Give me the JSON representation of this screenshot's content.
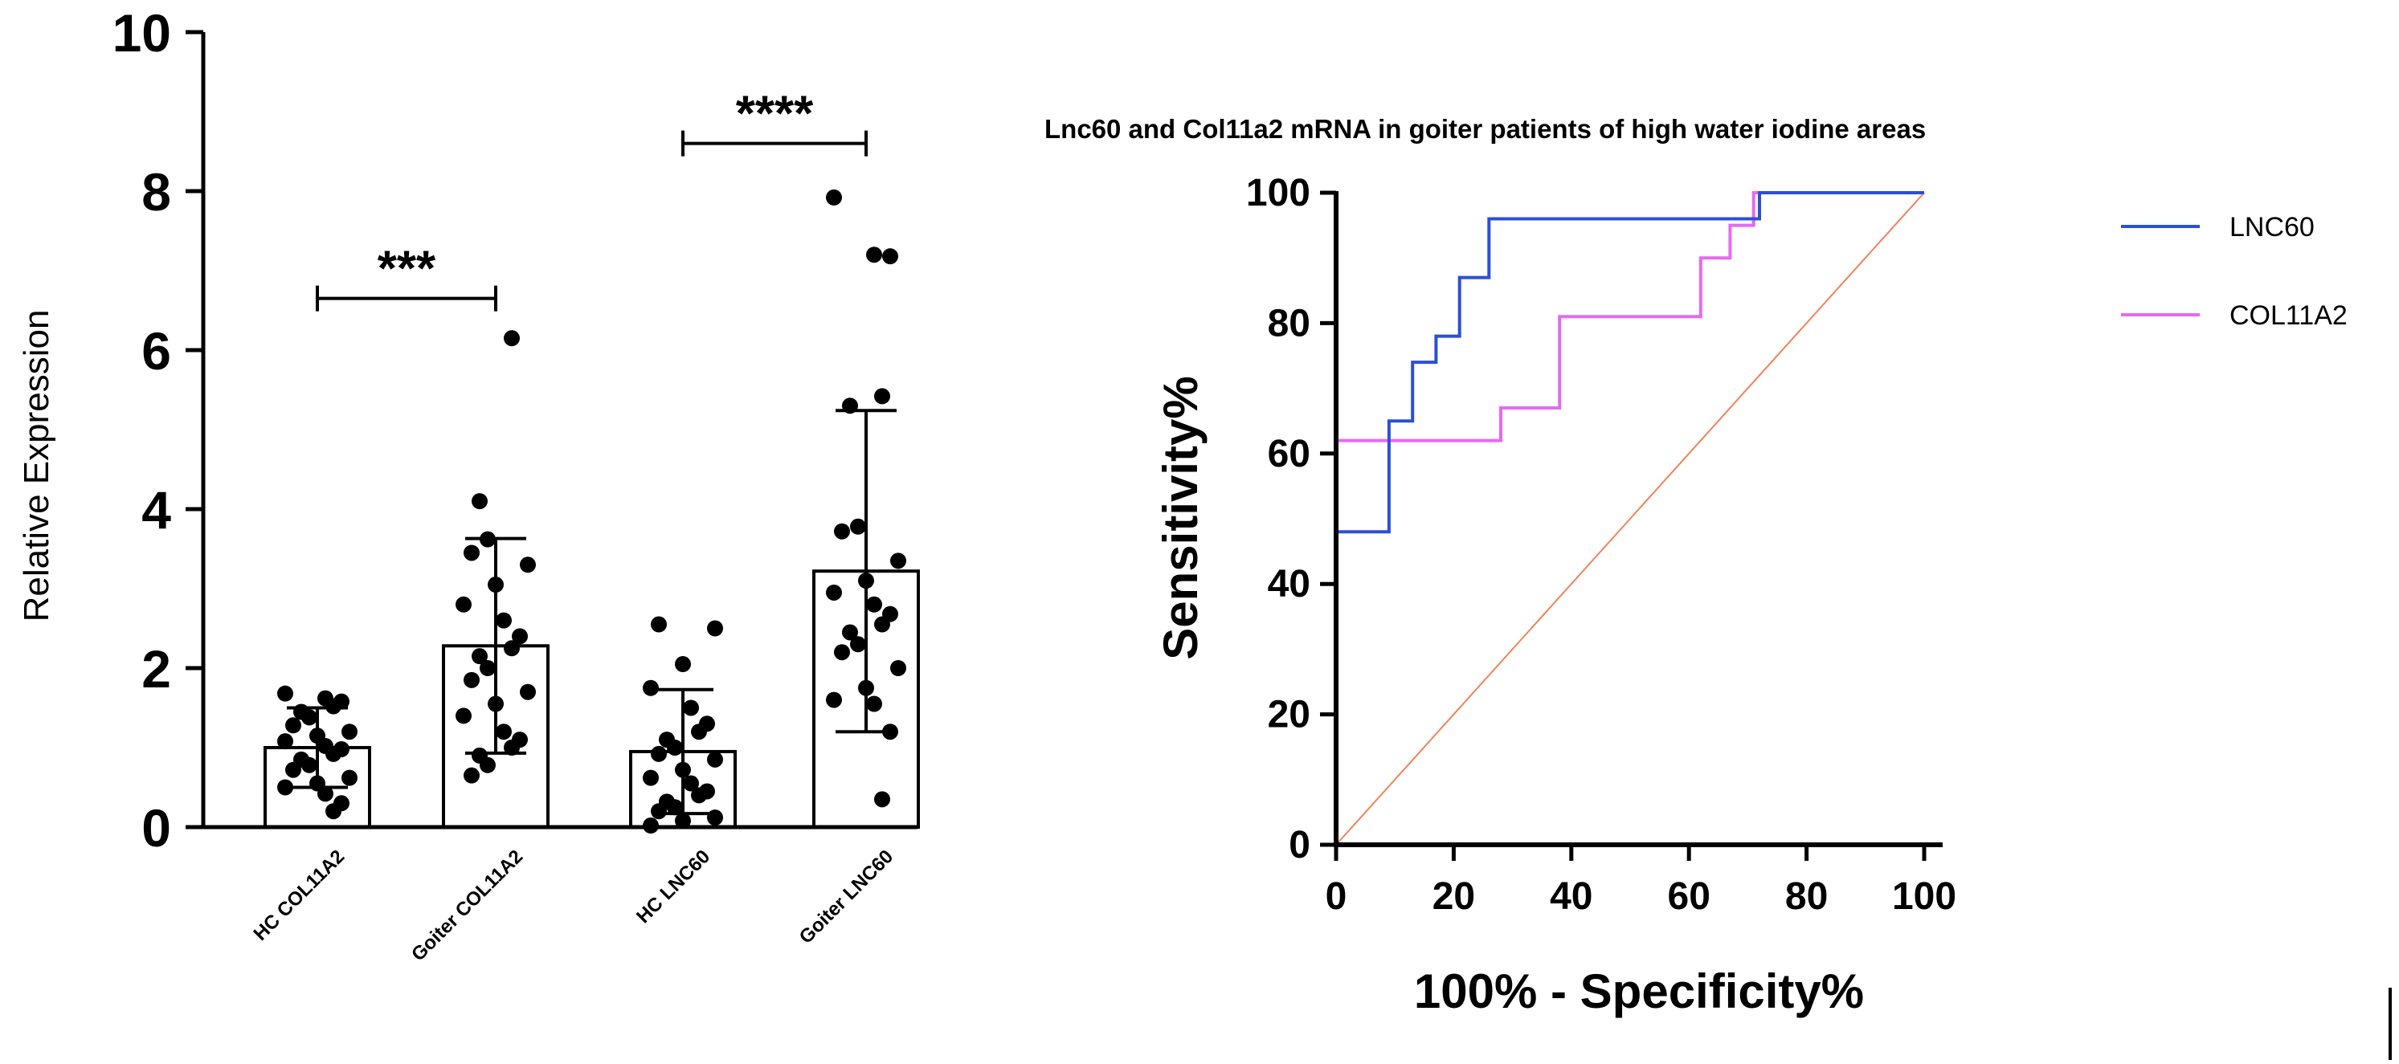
{
  "chart_data": [
    {
      "type": "bar",
      "title": "",
      "xlabel": "",
      "ylabel": "Relative Expression",
      "ylim": [
        0,
        10
      ],
      "yticks": [
        0,
        2,
        4,
        6,
        8,
        10
      ],
      "categories": [
        "HC COL11A2",
        "Goiter COL11A2",
        "HC LNC60",
        "Goiter LNC60"
      ],
      "values": [
        1.0,
        2.28,
        0.95,
        3.22
      ],
      "sd": [
        0.5,
        1.35,
        0.78,
        2.02
      ],
      "points": [
        [
          1.68,
          1.62,
          1.58,
          1.52,
          1.45,
          1.38,
          1.28,
          1.2,
          1.15,
          1.08,
          1.02,
          0.98,
          0.92,
          0.85,
          0.78,
          0.72,
          0.62,
          0.55,
          0.5,
          0.42,
          0.3,
          0.2
        ],
        [
          6.15,
          4.1,
          3.62,
          3.45,
          3.3,
          3.05,
          2.8,
          2.6,
          2.4,
          2.25,
          2.15,
          2.0,
          1.85,
          1.7,
          1.55,
          1.4,
          1.2,
          1.1,
          1.0,
          0.9,
          0.78,
          0.65
        ],
        [
          2.55,
          2.5,
          2.05,
          1.75,
          1.5,
          1.3,
          1.2,
          1.1,
          1.0,
          0.92,
          0.85,
          0.72,
          0.62,
          0.55,
          0.45,
          0.4,
          0.32,
          0.25,
          0.2,
          0.12,
          0.08,
          0.02
        ],
        [
          7.92,
          7.2,
          7.18,
          5.42,
          5.3,
          3.78,
          3.72,
          3.35,
          3.1,
          2.95,
          2.8,
          2.68,
          2.55,
          2.45,
          2.3,
          2.2,
          2.0,
          1.75,
          1.6,
          1.55,
          1.2,
          0.35
        ]
      ],
      "significance": [
        {
          "groups": [
            0,
            1
          ],
          "label": "***",
          "y": 6.65
        },
        {
          "groups": [
            2,
            3
          ],
          "label": "****",
          "y": 8.6
        }
      ]
    },
    {
      "type": "line",
      "title": "Lnc60 and Col11a2 mRNA in goiter patients of high water iodine areas",
      "xlabel": "100% - Specificity%",
      "ylabel": "Sensitivity%",
      "xlim": [
        0,
        100
      ],
      "ylim": [
        0,
        100
      ],
      "xticks": [
        0,
        20,
        40,
        60,
        80,
        100
      ],
      "yticks": [
        0,
        20,
        40,
        60,
        80,
        100
      ],
      "legend_position": "right",
      "series": [
        {
          "name": "LNC60",
          "color": "#2b4fd6",
          "x": [
            0,
            0,
            9,
            9,
            13,
            13,
            17,
            17,
            21,
            21,
            26,
            26,
            72,
            72,
            100
          ],
          "y": [
            0,
            48,
            48,
            65,
            65,
            74,
            74,
            78,
            78,
            87,
            87,
            96,
            96,
            100,
            100
          ]
        },
        {
          "name": "COL11A2",
          "color": "#e36bf0",
          "x": [
            0,
            0,
            28,
            28,
            38,
            38,
            62,
            62,
            67,
            67,
            71,
            71,
            100
          ],
          "y": [
            0,
            62,
            62,
            67,
            67,
            81,
            81,
            90,
            90,
            95,
            95,
            100,
            100
          ]
        },
        {
          "name": "reference",
          "color": "#f0835a",
          "x": [
            0,
            100
          ],
          "y": [
            0,
            100
          ]
        }
      ]
    }
  ]
}
